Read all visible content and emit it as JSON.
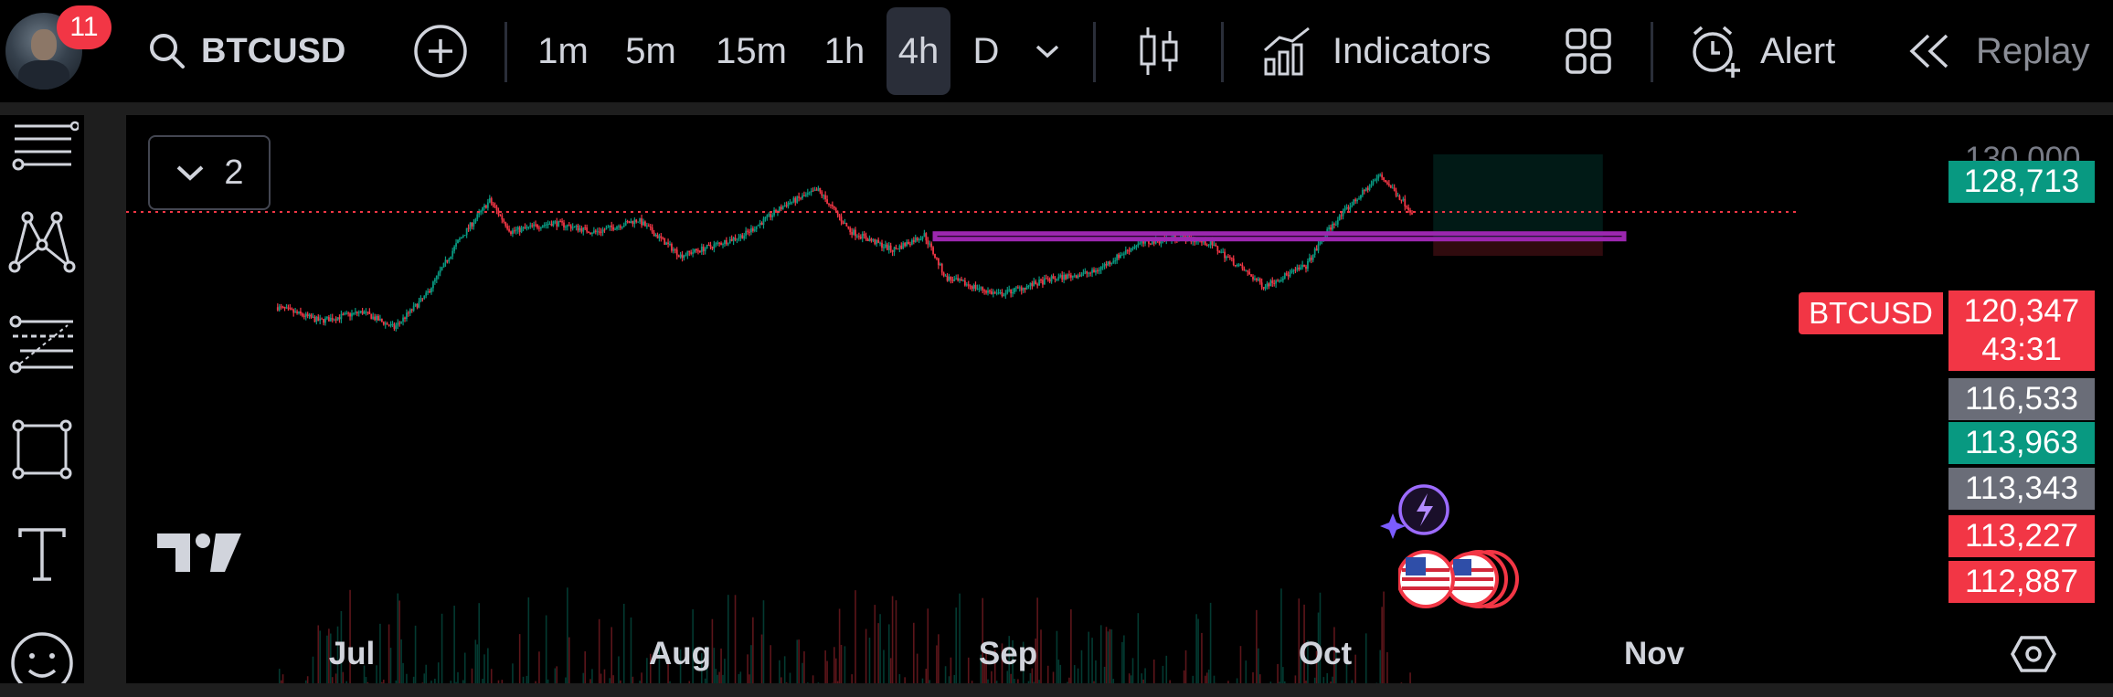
{
  "header": {
    "notifications": "11",
    "symbol": "BTCUSD",
    "timeframes": [
      {
        "label": "1m",
        "active": false
      },
      {
        "label": "5m",
        "active": false
      },
      {
        "label": "15m",
        "active": false
      },
      {
        "label": "1h",
        "active": false
      },
      {
        "label": "4h",
        "active": true
      },
      {
        "label": "D",
        "active": false
      }
    ],
    "indicators_label": "Indicators",
    "alert_label": "Alert",
    "replay_label": "Replay"
  },
  "legend": {
    "count": "2"
  },
  "price_scale": {
    "top_partial": "130,000",
    "labels": [
      {
        "id": "target",
        "value": "128,713",
        "color": "#089981"
      },
      {
        "id": "last",
        "value": "120,347",
        "color": "#f23645"
      },
      {
        "id": "countdown",
        "value": "43:31",
        "color": "#f23645"
      },
      {
        "id": "l1",
        "value": "116,533",
        "color": "#6a6d78"
      },
      {
        "id": "l2",
        "value": "113,963",
        "color": "#089981"
      },
      {
        "id": "l3",
        "value": "113,343",
        "color": "#6a6d78"
      },
      {
        "id": "l4",
        "value": "113,227",
        "color": "#f23645"
      },
      {
        "id": "l5",
        "value": "112,887",
        "color": "#f23645"
      }
    ]
  },
  "last_price_symbol": "BTCUSD",
  "chart_data": {
    "type": "candlestick",
    "symbol": "BTCUSD",
    "interval": "4h",
    "x_tick_labels": [
      "Jul",
      "Aug",
      "Sep",
      "Oct",
      "Nov"
    ],
    "last_price": 120347,
    "candle_close_countdown": "43:31",
    "annotations": {
      "zone_rectangle": {
        "price_high": 117200,
        "price_low": 116400,
        "color": "#9c27b0"
      },
      "long_position": {
        "entry": 116533,
        "target": 128713,
        "stop": 113963
      }
    },
    "path": [
      {
        "date": "2025-06-24",
        "price": 106500
      },
      {
        "date": "2025-06-28",
        "price": 104500
      },
      {
        "date": "2025-07-02",
        "price": 105800
      },
      {
        "date": "2025-07-05",
        "price": 103500
      },
      {
        "date": "2025-07-08",
        "price": 108200
      },
      {
        "date": "2025-07-11",
        "price": 116000
      },
      {
        "date": "2025-07-14",
        "price": 122000
      },
      {
        "date": "2025-07-16",
        "price": 117500
      },
      {
        "date": "2025-07-20",
        "price": 118800
      },
      {
        "date": "2025-07-24",
        "price": 117400
      },
      {
        "date": "2025-07-28",
        "price": 119200
      },
      {
        "date": "2025-08-01",
        "price": 114000
      },
      {
        "date": "2025-08-04",
        "price": 115400
      },
      {
        "date": "2025-08-07",
        "price": 117000
      },
      {
        "date": "2025-08-11",
        "price": 121500
      },
      {
        "date": "2025-08-14",
        "price": 123500
      },
      {
        "date": "2025-08-17",
        "price": 117600
      },
      {
        "date": "2025-08-21",
        "price": 114800
      },
      {
        "date": "2025-08-24",
        "price": 117000
      },
      {
        "date": "2025-08-26",
        "price": 110800
      },
      {
        "date": "2025-08-31",
        "price": 108300
      },
      {
        "date": "2025-09-05",
        "price": 110600
      },
      {
        "date": "2025-09-09",
        "price": 111600
      },
      {
        "date": "2025-09-13",
        "price": 115600
      },
      {
        "date": "2025-09-17",
        "price": 116700
      },
      {
        "date": "2025-09-20",
        "price": 115700
      },
      {
        "date": "2025-09-25",
        "price": 109600
      },
      {
        "date": "2025-09-29",
        "price": 112500
      },
      {
        "date": "2025-10-01",
        "price": 117500
      },
      {
        "date": "2025-10-03",
        "price": 121000
      },
      {
        "date": "2025-10-06",
        "price": 125700
      },
      {
        "date": "2025-10-08",
        "price": 122200
      },
      {
        "date": "2025-10-09",
        "price": 120347
      }
    ]
  }
}
